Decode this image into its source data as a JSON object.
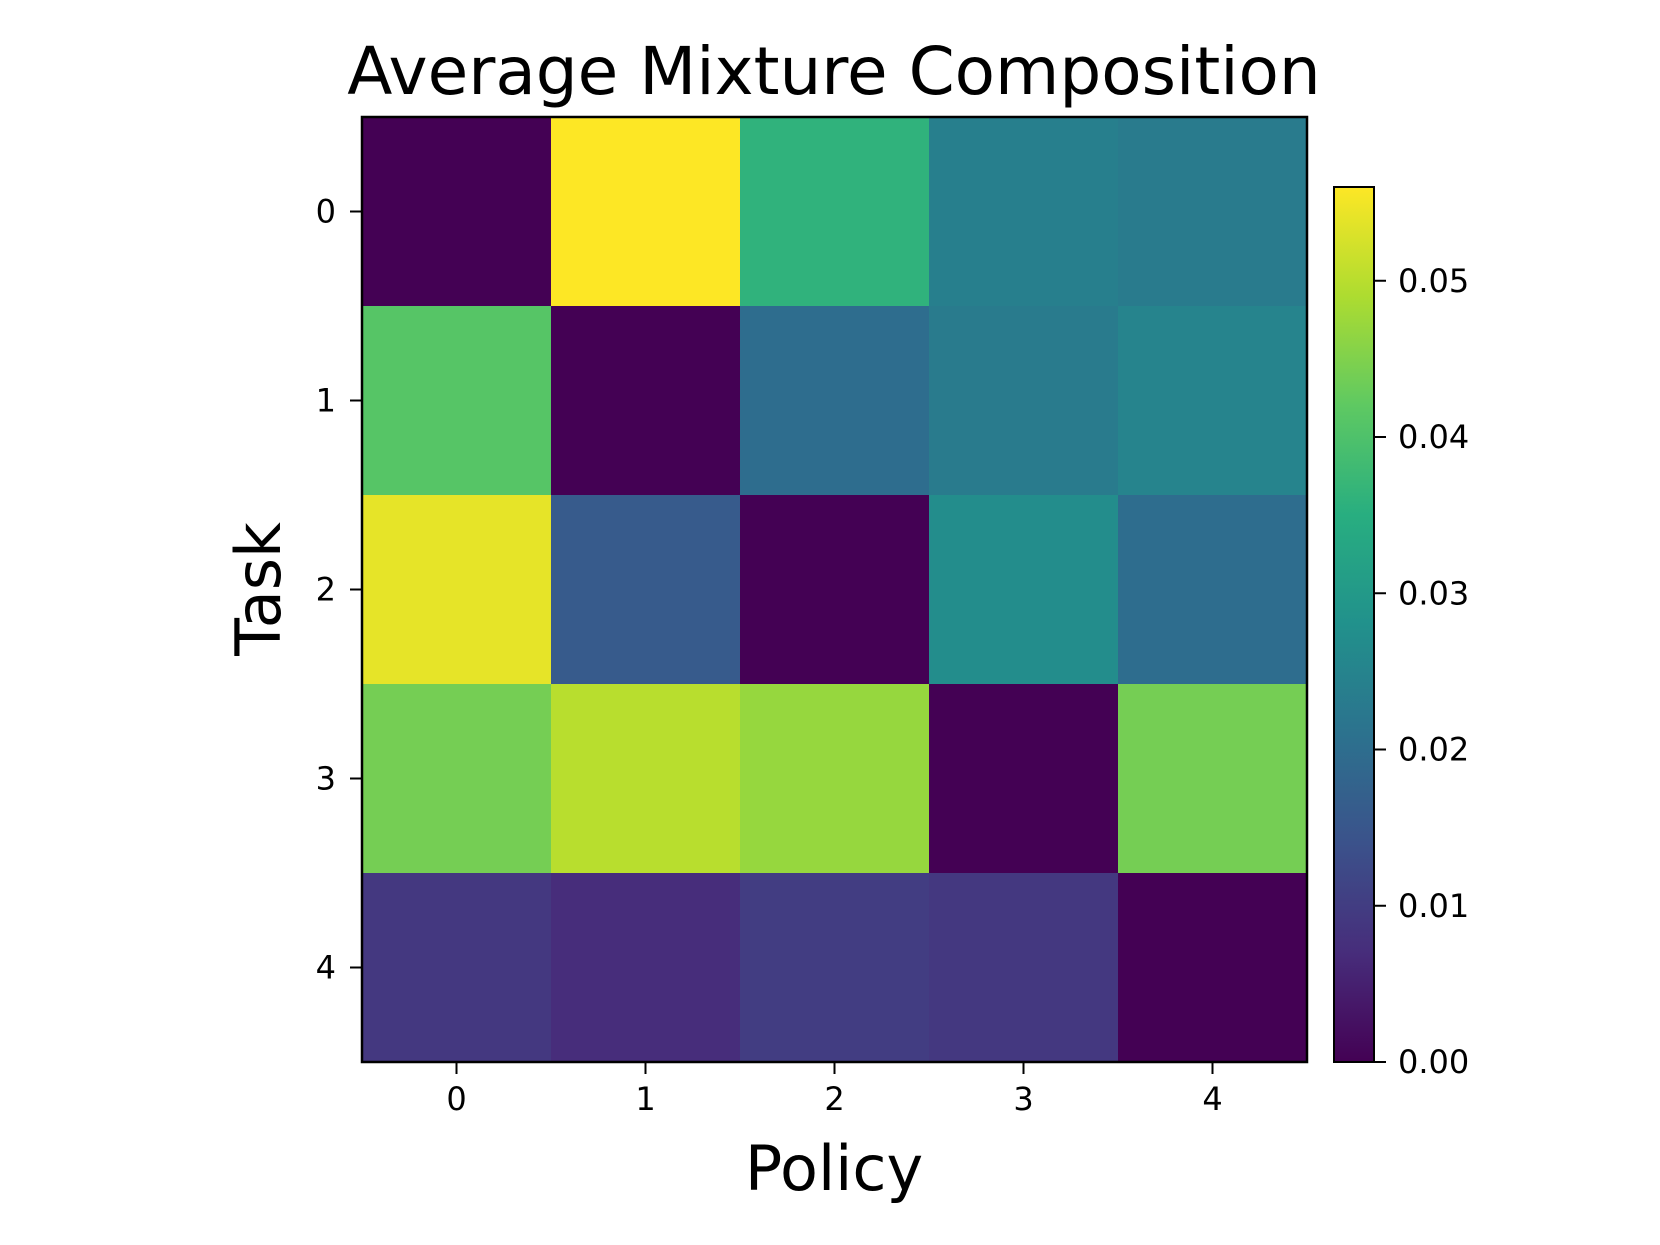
{
  "chart_data": {
    "type": "heatmap",
    "title": "Average Mixture Composition",
    "xlabel": "Policy",
    "ylabel": "Task",
    "x_categories": [
      "0",
      "1",
      "2",
      "3",
      "4"
    ],
    "y_categories": [
      "0",
      "1",
      "2",
      "3",
      "4"
    ],
    "values": [
      [
        0.0,
        0.056,
        0.036,
        0.024,
        0.023
      ],
      [
        0.041,
        0.0,
        0.02,
        0.023,
        0.025
      ],
      [
        0.054,
        0.016,
        0.0,
        0.027,
        0.02
      ],
      [
        0.044,
        0.05,
        0.047,
        0.0,
        0.044
      ],
      [
        0.009,
        0.007,
        0.01,
        0.009,
        0.0
      ]
    ],
    "colormap": "viridis",
    "colorbar": {
      "range": [
        0,
        0.056
      ],
      "ticks": [
        0.0,
        0.01,
        0.02,
        0.03,
        0.04,
        0.05
      ],
      "tick_labels": [
        "0.00",
        "0.01",
        "0.02",
        "0.03",
        "0.04",
        "0.05"
      ]
    }
  }
}
